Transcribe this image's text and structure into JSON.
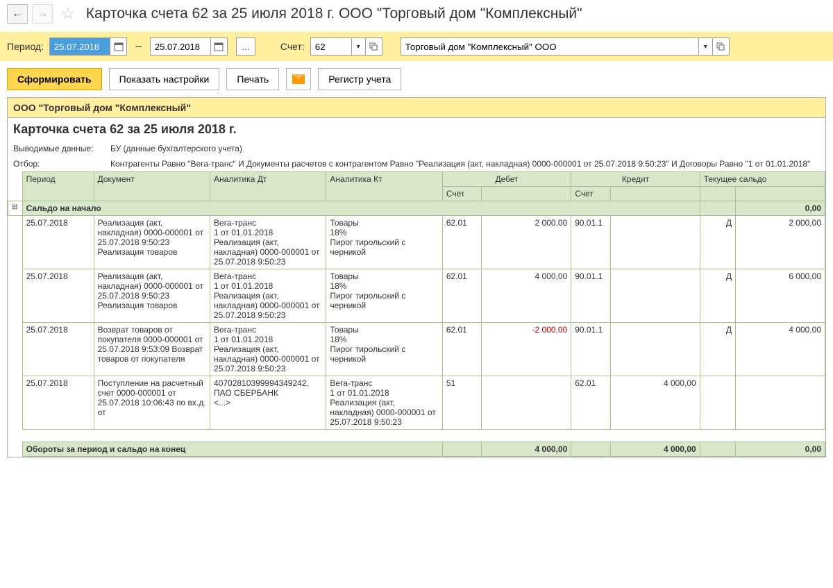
{
  "header": {
    "title": "Карточка счета 62 за 25 июля 2018 г. ООО \"Торговый дом \"Комплексный\""
  },
  "filter": {
    "period_label": "Период:",
    "date_from": "25.07.2018",
    "date_to": "25.07.2018",
    "account_label": "Счет:",
    "account": "62",
    "org": "Торговый дом \"Комплексный\" ООО"
  },
  "actions": {
    "generate": "Сформировать",
    "settings": "Показать настройки",
    "print": "Печать",
    "register": "Регистр учета"
  },
  "report": {
    "company": "ООО \"Торговый дом \"Комплексный\"",
    "title": "Карточка счета 62 за 25 июля 2018 г.",
    "meta1_label": "Выводимые данные:",
    "meta1_value": "БУ (данные бухгалтерского учета)",
    "meta2_label": "Отбор:",
    "meta2_value": "Контрагенты Равно \"Вега-транс\" И Документы расчетов с контрагентом Равно \"Реализация (акт, накладная) 0000-000001 от 25.07.2018 9:50:23\" И Договоры Равно \"1 от 01.01.2018\"",
    "headers": {
      "period": "Период",
      "document": "Документ",
      "analytics_dt": "Аналитика Дт",
      "analytics_kt": "Аналитика Кт",
      "debit": "Дебет",
      "credit": "Кредит",
      "account": "Счет",
      "balance": "Текущее сальдо"
    },
    "opening": {
      "label": "Сальдо на начало",
      "value": "0,00"
    },
    "rows": [
      {
        "period": "25.07.2018",
        "document": "Реализация (акт, накладная) 0000-000001 от 25.07.2018 9:50:23 Реализация товаров",
        "analytics_dt": "Вега-транс\n1 от 01.01.2018\nРеализация (акт, накладная) 0000-000001 от 25.07.2018 9:50:23",
        "analytics_kt": "Товары\n18%\nПирог тирольский с черникой",
        "debit_acct": "62.01",
        "debit_amt": "2 000,00",
        "credit_acct": "90.01.1",
        "credit_amt": "",
        "bal_dc": "Д",
        "bal_amt": "2 000,00"
      },
      {
        "period": "25.07.2018",
        "document": "Реализация (акт, накладная) 0000-000001 от 25.07.2018 9:50:23 Реализация товаров",
        "analytics_dt": "Вега-транс\n1 от 01.01.2018\nРеализация (акт, накладная) 0000-000001 от 25.07.2018 9:50:23",
        "analytics_kt": "Товары\n18%\nПирог тирольский с черникой",
        "debit_acct": "62.01",
        "debit_amt": "4 000,00",
        "credit_acct": "90.01.1",
        "credit_amt": "",
        "bal_dc": "Д",
        "bal_amt": "6 000,00"
      },
      {
        "period": "25.07.2018",
        "document": "Возврат товаров от покупателя 0000-000001 от 25.07.2018 9:53:09 Возврат товаров от покупателя",
        "analytics_dt": "Вега-транс\n1 от 01.01.2018\nРеализация (акт, накладная) 0000-000001 от 25.07.2018 9:50:23",
        "analytics_kt": "Товары\n18%\nПирог тирольский с черникой",
        "debit_acct": "62.01",
        "debit_amt": "-2 000,00",
        "debit_neg": true,
        "credit_acct": "90.01.1",
        "credit_amt": "",
        "bal_dc": "Д",
        "bal_amt": "4 000,00"
      },
      {
        "period": "25.07.2018",
        "document": "Поступление на расчетный счет 0000-000001 от 25.07.2018 10:06:43 по вх.д.  от",
        "analytics_dt": "40702810399994349242, ПАО СБЕРБАНК\n<...>",
        "analytics_kt": "Вега-транс\n1 от 01.01.2018\nРеализация (акт, накладная) 0000-000001 от 25.07.2018 9:50:23",
        "debit_acct": "51",
        "debit_amt": "",
        "credit_acct": "62.01",
        "credit_amt": "4 000,00",
        "bal_dc": "",
        "bal_amt": ""
      }
    ],
    "totals": {
      "label": "Обороты за период и сальдо на конец",
      "debit": "4 000,00",
      "credit": "4 000,00",
      "balance": "0,00"
    }
  }
}
